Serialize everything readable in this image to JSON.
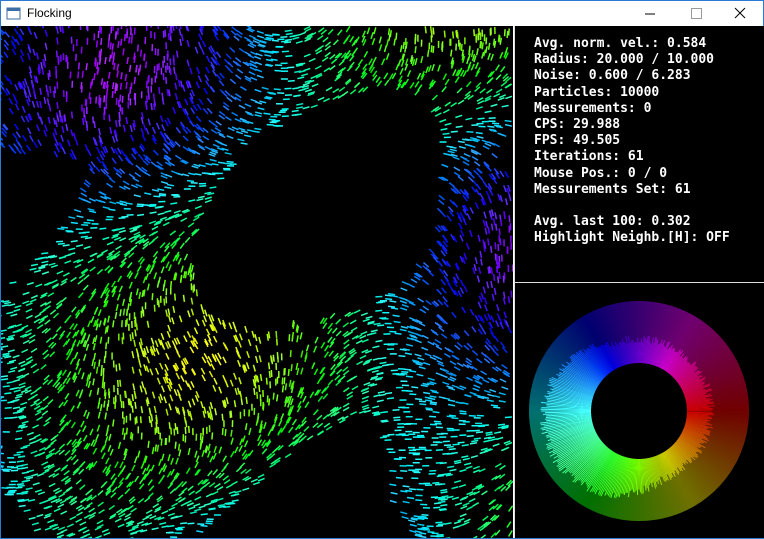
{
  "window": {
    "title": "Flocking"
  },
  "stats": {
    "lines": [
      "Avg. norm. vel.: 0.584",
      "Radius: 20.000 / 10.000",
      "Noise: 0.600 / 6.283",
      "Particles: 10000",
      "Messurements: 0",
      "CPS: 29.988",
      "FPS: 49.505",
      "Iterations: 61",
      "Mouse Pos.: 0 / 0",
      "Messurements Set: 61"
    ],
    "extra_lines": [
      "Avg. last 100: 0.302",
      "Highlight Neighb.[H]: OFF"
    ]
  }
}
